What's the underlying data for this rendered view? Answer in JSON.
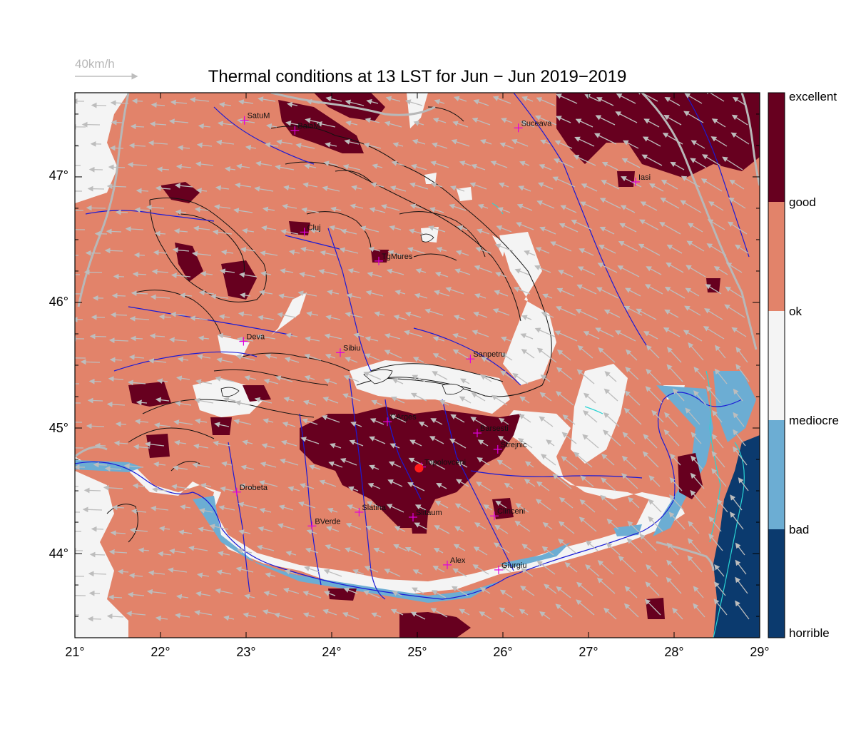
{
  "title": "Thermal conditions at 13 LST for Jun − Jun  2019−2019",
  "wind_key": {
    "label": "40km/h"
  },
  "legend": {
    "levels": [
      "excellent",
      "good",
      "ok",
      "mediocre",
      "bad",
      "horrible"
    ],
    "colors": {
      "excellent": "#67001f",
      "good": "#e2836a",
      "ok": "#f4f4f4",
      "mediocre": "#6cadd3",
      "bad": "#0b3a6e"
    }
  },
  "axes": {
    "lon_labels": [
      "21°",
      "22°",
      "23°",
      "24°",
      "25°",
      "26°",
      "27°",
      "28°",
      "29°"
    ],
    "lat_labels": [
      "47°",
      "46°",
      "45°",
      "44°"
    ],
    "lon_range": [
      21,
      29
    ],
    "lat_range": [
      43.33,
      47.67
    ]
  },
  "colors": {
    "river": "#1a1ad6",
    "border": "#b8b8b8",
    "wind_arrow": "#bdbdbd",
    "marker": "#ff1a1a",
    "city_cross": "#e000e0",
    "coast": "#29d4d4"
  },
  "cities": [
    {
      "name": "SatuM",
      "lon": 22.98,
      "lat": 47.45
    },
    {
      "name": "BaiaM",
      "lon": 23.57,
      "lat": 47.37
    },
    {
      "name": "Suceava",
      "lon": 26.18,
      "lat": 47.39
    },
    {
      "name": "Iasi",
      "lon": 27.55,
      "lat": 46.96
    },
    {
      "name": "Cluj",
      "lon": 23.68,
      "lat": 46.56
    },
    {
      "name": "TgMures",
      "lon": 24.55,
      "lat": 46.33
    },
    {
      "name": "Deva",
      "lon": 22.97,
      "lat": 45.69
    },
    {
      "name": "Sibiu",
      "lon": 24.1,
      "lat": 45.6
    },
    {
      "name": "Sanpetru",
      "lon": 25.62,
      "lat": 45.55
    },
    {
      "name": "CArges",
      "lon": 24.65,
      "lat": 45.05
    },
    {
      "name": "Barsesti",
      "lon": 25.7,
      "lat": 44.96
    },
    {
      "name": "Strejnic",
      "lon": 25.94,
      "lat": 44.83
    },
    {
      "name": "Topolovceni",
      "lon": 25.05,
      "lat": 44.69
    },
    {
      "name": "Drobeta",
      "lon": 22.89,
      "lat": 44.49
    },
    {
      "name": "Slatina",
      "lon": 24.32,
      "lat": 44.33
    },
    {
      "name": "Slitaum",
      "lon": 24.95,
      "lat": 44.29
    },
    {
      "name": "Clinceni",
      "lon": 25.9,
      "lat": 44.3
    },
    {
      "name": "BVerde",
      "lon": 23.77,
      "lat": 44.22
    },
    {
      "name": "Alex",
      "lon": 25.35,
      "lat": 43.91
    },
    {
      "name": "Giurgiu",
      "lon": 25.95,
      "lat": 43.87
    }
  ],
  "marker": {
    "name": "Topolovceni",
    "lon": 25.02,
    "lat": 44.68
  }
}
